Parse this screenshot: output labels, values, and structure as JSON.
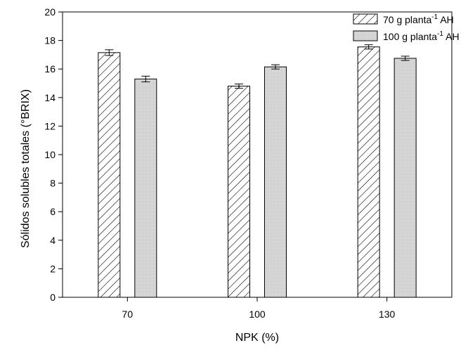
{
  "chart_data": {
    "type": "bar",
    "xlabel": "NPK (%)",
    "ylabel": "Sólidos solubles totales (°BRIX)",
    "categories": [
      "70",
      "100",
      "130"
    ],
    "ylim": [
      0,
      20
    ],
    "yticks": [
      "0",
      "2",
      "4",
      "6",
      "8",
      "10",
      "12",
      "14",
      "16",
      "18",
      "20"
    ],
    "series": [
      {
        "name": "70 g planta-1 AH",
        "legend_main": "70 g planta",
        "legend_sup": "-1",
        "legend_suffix": " AH",
        "fill": "hatch",
        "values": [
          17.15,
          14.8,
          17.55
        ],
        "errors": [
          0.2,
          0.15,
          0.15
        ]
      },
      {
        "name": "100 g planta-1 AH",
        "legend_main": "100 g planta",
        "legend_sup": "-1",
        "legend_suffix": " AH",
        "fill": "dotted-gray",
        "values": [
          15.3,
          16.15,
          16.75
        ],
        "errors": [
          0.2,
          0.15,
          0.15
        ]
      }
    ],
    "legend_position": "top-right",
    "grid": false
  }
}
